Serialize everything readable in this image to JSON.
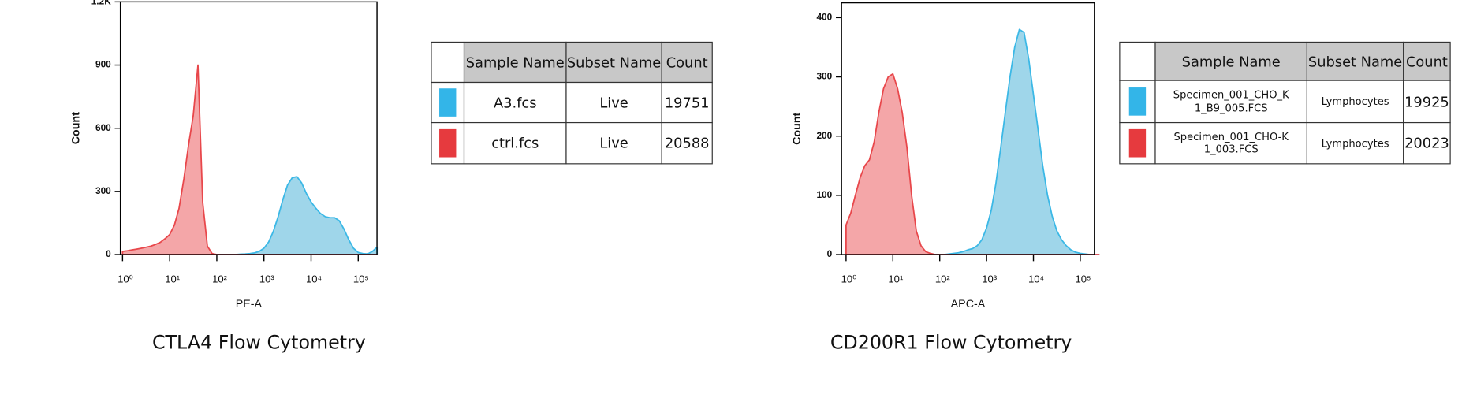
{
  "chart_data": [
    {
      "type": "area",
      "title": "CTLA4 Flow Cytometry",
      "x_label": "PE-A",
      "y_label": "Count",
      "xscale": "log",
      "xlim": [
        0.9,
        250000
      ],
      "ylim": [
        0,
        1200
      ],
      "xticks": [
        {
          "value": 1,
          "label": "10⁰"
        },
        {
          "value": 10,
          "label": "10¹"
        },
        {
          "value": 100,
          "label": "10²"
        },
        {
          "value": 1000,
          "label": "10³"
        },
        {
          "value": 10000,
          "label": "10⁴"
        },
        {
          "value": 100000,
          "label": "10⁵"
        }
      ],
      "yticks": [
        0,
        300,
        600,
        900,
        {
          "value": 1200,
          "label": "1.2K"
        }
      ],
      "table_headers": [
        "Sample Name",
        "Subset Name",
        "Count"
      ],
      "x": [
        1,
        1.26,
        1.58,
        2,
        2.51,
        3.16,
        3.98,
        5.01,
        6.31,
        7.94,
        10,
        12.6,
        15.8,
        20,
        25.1,
        31.6,
        39.8,
        50.1,
        63.1,
        79.4,
        100,
        126,
        158,
        200,
        251,
        316,
        398,
        501,
        631,
        794,
        1000,
        1260,
        1580,
        2000,
        2510,
        3160,
        3980,
        5010,
        6310,
        7940,
        10000,
        12600,
        15800,
        20000,
        25100,
        31600,
        39800,
        50100,
        63100,
        79400,
        100000,
        126000,
        158000,
        200000,
        251000
      ],
      "series": [
        {
          "name": "A3.fcs",
          "subset": "Live",
          "count": 19751,
          "color": "#3bb8e6",
          "fill": "#9fd6ea",
          "swatch": "#33b5e8",
          "values": [
            0,
            0,
            0,
            0,
            0,
            0,
            0,
            0,
            0,
            0,
            0,
            0,
            0,
            0,
            0,
            0,
            0,
            0,
            0,
            0,
            0,
            0,
            0,
            0,
            0,
            2,
            3,
            5,
            8,
            15,
            30,
            60,
            110,
            180,
            260,
            330,
            365,
            370,
            340,
            290,
            250,
            220,
            195,
            180,
            175,
            175,
            160,
            120,
            70,
            30,
            10,
            5,
            3,
            15,
            35
          ]
        },
        {
          "name": "ctrl.fcs",
          "subset": "Live",
          "count": 20588,
          "color": "#e8474b",
          "fill": "#f4a6a8",
          "swatch": "#e63a3e",
          "values": [
            15,
            18,
            22,
            26,
            30,
            35,
            40,
            48,
            58,
            75,
            95,
            140,
            220,
            360,
            520,
            660,
            900,
            250,
            40,
            5,
            0,
            0,
            0,
            0,
            0,
            0,
            0,
            0,
            0,
            0,
            0,
            0,
            0,
            0,
            0,
            0,
            0,
            0,
            0,
            0,
            0,
            0,
            0,
            0,
            0,
            0,
            0,
            0,
            0,
            0,
            0,
            0,
            0,
            0,
            0
          ]
        }
      ]
    },
    {
      "type": "area",
      "title": "CD200R1 Flow Cytometry",
      "x_label": "APC-A",
      "y_label": "Count",
      "xscale": "log",
      "xlim": [
        0.8,
        200000
      ],
      "ylim": [
        0,
        425
      ],
      "xticks": [
        {
          "value": 1,
          "label": "10⁰"
        },
        {
          "value": 10,
          "label": "10¹"
        },
        {
          "value": 100,
          "label": "10²"
        },
        {
          "value": 1000,
          "label": "10³"
        },
        {
          "value": 10000,
          "label": "10⁴"
        },
        {
          "value": 100000,
          "label": "10⁵"
        }
      ],
      "yticks": [
        0,
        100,
        200,
        300,
        400
      ],
      "table_headers": [
        "Sample Name",
        "Subset Name",
        "Count"
      ],
      "x": [
        1,
        1.26,
        1.58,
        2,
        2.51,
        3.16,
        3.98,
        5.01,
        6.31,
        7.94,
        10,
        12.6,
        15.8,
        20,
        25.1,
        31.6,
        39.8,
        50.1,
        63.1,
        79.4,
        100,
        126,
        158,
        200,
        251,
        316,
        398,
        501,
        631,
        794,
        1000,
        1260,
        1580,
        2000,
        2510,
        3160,
        3980,
        5010,
        6310,
        7940,
        10000,
        12600,
        15800,
        20000,
        25100,
        31600,
        39800,
        50100,
        63100,
        79400,
        100000,
        126000,
        158000,
        200000,
        251000
      ],
      "series": [
        {
          "name": "Specimen_001_CHO_K1_B9_005.FCS",
          "subset": "Lymphocytes",
          "count": 19925,
          "color": "#3bb8e6",
          "fill": "#9fd6ea",
          "swatch": "#33b5e8",
          "values": [
            0,
            0,
            0,
            0,
            0,
            0,
            0,
            0,
            0,
            0,
            0,
            0,
            0,
            0,
            0,
            0,
            0,
            0,
            0,
            0,
            0,
            0,
            1,
            2,
            3,
            5,
            8,
            10,
            15,
            25,
            45,
            75,
            120,
            180,
            240,
            300,
            350,
            380,
            375,
            330,
            270,
            210,
            150,
            100,
            65,
            40,
            25,
            15,
            8,
            4,
            2,
            1,
            0,
            0,
            0
          ]
        },
        {
          "name": "Specimen_001_CHO-K1_003.FCS",
          "subset": "Lymphocytes",
          "count": 20023,
          "color": "#e8474b",
          "fill": "#f4a6a8",
          "swatch": "#e63a3e",
          "values": [
            50,
            70,
            100,
            130,
            150,
            160,
            190,
            240,
            280,
            300,
            305,
            280,
            240,
            180,
            100,
            40,
            15,
            5,
            2,
            0,
            0,
            0,
            0,
            0,
            0,
            0,
            0,
            0,
            0,
            0,
            0,
            0,
            0,
            0,
            0,
            0,
            0,
            0,
            0,
            0,
            0,
            0,
            0,
            0,
            0,
            0,
            0,
            0,
            0,
            0,
            0,
            0,
            0,
            0,
            0
          ]
        }
      ]
    }
  ]
}
